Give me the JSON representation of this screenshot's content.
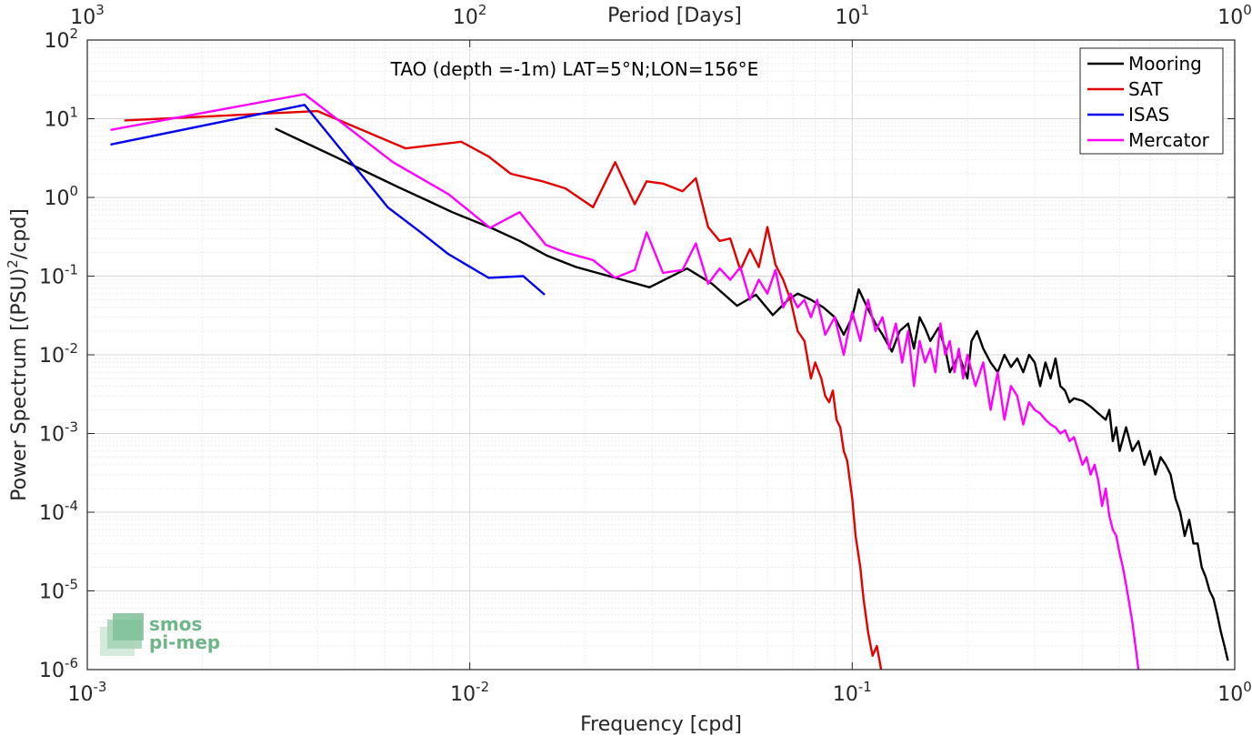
{
  "chart_data": {
    "type": "line",
    "title": "TAO (depth =-1m) LAT=5°N;LON=156°E",
    "xlabel": "Frequency [cpd]",
    "ylabel": "Power Spectrum [(PSU)²/cpd]",
    "ylabel_parts": {
      "before": "Power Spectrum [(PSU)",
      "sup": "2",
      "after": "/cpd]"
    },
    "top_xlabel": "Period [Days]",
    "xscale": "log",
    "yscale": "log",
    "xlim": [
      0.001,
      1
    ],
    "ylim": [
      1e-06,
      100
    ],
    "grid": true,
    "legend_position": "top-right",
    "x_ticks": [
      {
        "value": 0.001,
        "base": "10",
        "exp": "-3"
      },
      {
        "value": 0.01,
        "base": "10",
        "exp": "-2"
      },
      {
        "value": 0.1,
        "base": "10",
        "exp": "-1"
      },
      {
        "value": 1,
        "base": "10",
        "exp": "0"
      }
    ],
    "top_ticks": [
      {
        "freq": 0.001,
        "base": "10",
        "exp": "3"
      },
      {
        "freq": 0.01,
        "base": "10",
        "exp": "2"
      },
      {
        "freq": 0.1,
        "base": "10",
        "exp": "1"
      },
      {
        "freq": 1,
        "base": "10",
        "exp": "0"
      }
    ],
    "y_ticks": [
      {
        "value": 100,
        "base": "10",
        "exp": "2"
      },
      {
        "value": 10,
        "base": "10",
        "exp": "1"
      },
      {
        "value": 1,
        "base": "10",
        "exp": "0"
      },
      {
        "value": 0.1,
        "base": "10",
        "exp": "-1"
      },
      {
        "value": 0.01,
        "base": "10",
        "exp": "-2"
      },
      {
        "value": 0.001,
        "base": "10",
        "exp": "-3"
      },
      {
        "value": 0.0001,
        "base": "10",
        "exp": "-4"
      },
      {
        "value": 1e-05,
        "base": "10",
        "exp": "-5"
      },
      {
        "value": 1e-06,
        "base": "10",
        "exp": "-6"
      }
    ],
    "series": [
      {
        "name": "Mooring",
        "color": "#000000",
        "points": [
          [
            0.0031,
            7.5
          ],
          [
            0.0037,
            5.0
          ],
          [
            0.0045,
            3.2
          ],
          [
            0.0055,
            2.0
          ],
          [
            0.0065,
            1.35
          ],
          [
            0.0078,
            0.9
          ],
          [
            0.009,
            0.65
          ],
          [
            0.0115,
            0.4
          ],
          [
            0.0135,
            0.28
          ],
          [
            0.016,
            0.18
          ],
          [
            0.019,
            0.13
          ],
          [
            0.024,
            0.095
          ],
          [
            0.0295,
            0.072
          ],
          [
            0.037,
            0.125
          ],
          [
            0.043,
            0.08
          ],
          [
            0.05,
            0.042
          ],
          [
            0.056,
            0.058
          ],
          [
            0.062,
            0.032
          ],
          [
            0.068,
            0.05
          ],
          [
            0.072,
            0.06
          ],
          [
            0.078,
            0.05
          ],
          [
            0.084,
            0.04
          ],
          [
            0.09,
            0.03
          ],
          [
            0.095,
            0.018
          ],
          [
            0.1,
            0.03
          ],
          [
            0.104,
            0.068
          ],
          [
            0.11,
            0.038
          ],
          [
            0.115,
            0.025
          ],
          [
            0.12,
            0.018
          ],
          [
            0.127,
            0.011
          ],
          [
            0.133,
            0.02
          ],
          [
            0.14,
            0.025
          ],
          [
            0.145,
            0.012
          ],
          [
            0.15,
            0.03
          ],
          [
            0.155,
            0.022
          ],
          [
            0.16,
            0.015
          ],
          [
            0.168,
            0.022
          ],
          [
            0.175,
            0.012
          ],
          [
            0.18,
            0.006
          ],
          [
            0.19,
            0.01
          ],
          [
            0.2,
            0.005
          ],
          [
            0.205,
            0.015
          ],
          [
            0.212,
            0.02
          ],
          [
            0.22,
            0.012
          ],
          [
            0.23,
            0.008
          ],
          [
            0.24,
            0.006
          ],
          [
            0.25,
            0.01
          ],
          [
            0.26,
            0.007
          ],
          [
            0.27,
            0.009
          ],
          [
            0.28,
            0.006
          ],
          [
            0.29,
            0.01
          ],
          [
            0.3,
            0.008
          ],
          [
            0.31,
            0.004
          ],
          [
            0.32,
            0.008
          ],
          [
            0.33,
            0.005
          ],
          [
            0.34,
            0.009
          ],
          [
            0.35,
            0.004
          ],
          [
            0.36,
            0.0035
          ],
          [
            0.37,
            0.0025
          ],
          [
            0.38,
            0.0028
          ],
          [
            0.4,
            0.0026
          ],
          [
            0.42,
            0.0022
          ],
          [
            0.44,
            0.0018
          ],
          [
            0.46,
            0.0015
          ],
          [
            0.47,
            0.002
          ],
          [
            0.48,
            0.0008
          ],
          [
            0.49,
            0.0012
          ],
          [
            0.5,
            0.0006
          ],
          [
            0.52,
            0.0012
          ],
          [
            0.54,
            0.0006
          ],
          [
            0.56,
            0.0008
          ],
          [
            0.58,
            0.0004
          ],
          [
            0.6,
            0.0006
          ],
          [
            0.62,
            0.0003
          ],
          [
            0.64,
            0.0005
          ],
          [
            0.66,
            0.0004
          ],
          [
            0.68,
            0.0003
          ],
          [
            0.7,
            0.00015
          ],
          [
            0.72,
            0.0001
          ],
          [
            0.74,
            5e-05
          ],
          [
            0.76,
            8e-05
          ],
          [
            0.78,
            4e-05
          ],
          [
            0.8,
            4e-05
          ],
          [
            0.82,
            2e-05
          ],
          [
            0.84,
            1.5e-05
          ],
          [
            0.86,
            1e-05
          ],
          [
            0.88,
            8e-06
          ],
          [
            0.9,
            5e-06
          ],
          [
            0.92,
            3e-06
          ],
          [
            0.94,
            2e-06
          ],
          [
            0.96,
            1.3e-06
          ]
        ]
      },
      {
        "name": "SAT",
        "color": "#e50000",
        "points": [
          [
            0.00125,
            9.5
          ],
          [
            0.004,
            12.5
          ],
          [
            0.0068,
            4.2
          ],
          [
            0.0095,
            5.1
          ],
          [
            0.0112,
            3.3
          ],
          [
            0.0128,
            2.0
          ],
          [
            0.0155,
            1.6
          ],
          [
            0.0178,
            1.3
          ],
          [
            0.021,
            0.75
          ],
          [
            0.024,
            2.8
          ],
          [
            0.027,
            0.82
          ],
          [
            0.029,
            1.6
          ],
          [
            0.032,
            1.5
          ],
          [
            0.036,
            1.2
          ],
          [
            0.039,
            1.75
          ],
          [
            0.042,
            0.42
          ],
          [
            0.045,
            0.28
          ],
          [
            0.048,
            0.3
          ],
          [
            0.051,
            0.12
          ],
          [
            0.054,
            0.22
          ],
          [
            0.057,
            0.13
          ],
          [
            0.06,
            0.42
          ],
          [
            0.063,
            0.14
          ],
          [
            0.066,
            0.09
          ],
          [
            0.069,
            0.05
          ],
          [
            0.072,
            0.02
          ],
          [
            0.075,
            0.015
          ],
          [
            0.078,
            0.005
          ],
          [
            0.08,
            0.008
          ],
          [
            0.083,
            0.005
          ],
          [
            0.085,
            0.003
          ],
          [
            0.087,
            0.0025
          ],
          [
            0.089,
            0.0035
          ],
          [
            0.091,
            0.0015
          ],
          [
            0.093,
            0.0012
          ],
          [
            0.095,
            0.0006
          ],
          [
            0.097,
            0.00045
          ],
          [
            0.1,
            0.00015
          ],
          [
            0.102,
            5e-05
          ],
          [
            0.105,
            2e-05
          ],
          [
            0.107,
            8e-06
          ],
          [
            0.11,
            3e-06
          ],
          [
            0.113,
            1.5e-06
          ],
          [
            0.116,
            2e-06
          ],
          [
            0.119,
            1e-06
          ]
        ]
      },
      {
        "name": "ISAS",
        "color": "#0000ee",
        "points": [
          [
            0.00115,
            4.7
          ],
          [
            0.0037,
            15.0
          ],
          [
            0.0051,
            2.2
          ],
          [
            0.0061,
            0.75
          ],
          [
            0.0075,
            0.35
          ],
          [
            0.0088,
            0.19
          ],
          [
            0.0112,
            0.095
          ],
          [
            0.0138,
            0.1
          ],
          [
            0.0157,
            0.058
          ]
        ]
      },
      {
        "name": "Mercator",
        "color": "#ff00ff",
        "points": [
          [
            0.00115,
            7.2
          ],
          [
            0.0037,
            20.5
          ],
          [
            0.0063,
            2.8
          ],
          [
            0.0088,
            1.1
          ],
          [
            0.0113,
            0.41
          ],
          [
            0.0135,
            0.65
          ],
          [
            0.0158,
            0.25
          ],
          [
            0.0178,
            0.2
          ],
          [
            0.021,
            0.16
          ],
          [
            0.024,
            0.095
          ],
          [
            0.027,
            0.12
          ],
          [
            0.029,
            0.36
          ],
          [
            0.032,
            0.11
          ],
          [
            0.036,
            0.12
          ],
          [
            0.039,
            0.26
          ],
          [
            0.042,
            0.08
          ],
          [
            0.045,
            0.125
          ],
          [
            0.048,
            0.09
          ],
          [
            0.051,
            0.13
          ],
          [
            0.054,
            0.05
          ],
          [
            0.057,
            0.09
          ],
          [
            0.06,
            0.06
          ],
          [
            0.063,
            0.12
          ],
          [
            0.066,
            0.04
          ],
          [
            0.069,
            0.06
          ],
          [
            0.072,
            0.04
          ],
          [
            0.075,
            0.05
          ],
          [
            0.078,
            0.03
          ],
          [
            0.081,
            0.05
          ],
          [
            0.085,
            0.018
          ],
          [
            0.09,
            0.03
          ],
          [
            0.095,
            0.01
          ],
          [
            0.1,
            0.035
          ],
          [
            0.105,
            0.015
          ],
          [
            0.11,
            0.05
          ],
          [
            0.115,
            0.02
          ],
          [
            0.12,
            0.03
          ],
          [
            0.125,
            0.012
          ],
          [
            0.13,
            0.025
          ],
          [
            0.135,
            0.008
          ],
          [
            0.14,
            0.02
          ],
          [
            0.145,
            0.004
          ],
          [
            0.15,
            0.015
          ],
          [
            0.155,
            0.008
          ],
          [
            0.16,
            0.012
          ],
          [
            0.165,
            0.006
          ],
          [
            0.17,
            0.025
          ],
          [
            0.175,
            0.01
          ],
          [
            0.18,
            0.015
          ],
          [
            0.185,
            0.006
          ],
          [
            0.19,
            0.012
          ],
          [
            0.195,
            0.005
          ],
          [
            0.2,
            0.01
          ],
          [
            0.21,
            0.004
          ],
          [
            0.22,
            0.008
          ],
          [
            0.23,
            0.002
          ],
          [
            0.24,
            0.006
          ],
          [
            0.25,
            0.0015
          ],
          [
            0.26,
            0.004
          ],
          [
            0.27,
            0.003
          ],
          [
            0.28,
            0.0013
          ],
          [
            0.29,
            0.0025
          ],
          [
            0.3,
            0.002
          ],
          [
            0.31,
            0.0018
          ],
          [
            0.32,
            0.0015
          ],
          [
            0.33,
            0.0013
          ],
          [
            0.34,
            0.0012
          ],
          [
            0.35,
            0.001
          ],
          [
            0.36,
            0.0011
          ],
          [
            0.37,
            0.0008
          ],
          [
            0.38,
            0.0009
          ],
          [
            0.39,
            0.0006
          ],
          [
            0.4,
            0.0004
          ],
          [
            0.41,
            0.0005
          ],
          [
            0.42,
            0.0003
          ],
          [
            0.43,
            0.0004
          ],
          [
            0.44,
            0.00025
          ],
          [
            0.45,
            0.00012
          ],
          [
            0.46,
            0.0002
          ],
          [
            0.47,
            9e-05
          ],
          [
            0.48,
            6e-05
          ],
          [
            0.49,
            5e-05
          ],
          [
            0.5,
            3e-05
          ],
          [
            0.51,
            2e-05
          ],
          [
            0.52,
            1.2e-05
          ],
          [
            0.53,
            7e-06
          ],
          [
            0.54,
            4e-06
          ],
          [
            0.55,
            2e-06
          ],
          [
            0.56,
            1e-06
          ]
        ]
      }
    ]
  },
  "logo": {
    "line1": "smos",
    "line2": "pi-mep"
  }
}
